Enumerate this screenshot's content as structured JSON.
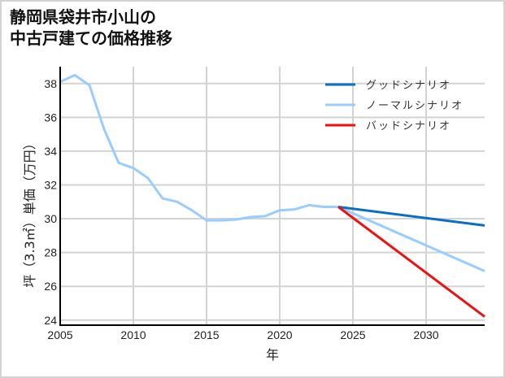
{
  "title": "静岡県袋井市小山の\n中古戸建ての価格推移",
  "chart_data": {
    "type": "line",
    "title": "静岡県袋井市小山の中古戸建ての価格推移",
    "xlabel": "年",
    "ylabel": "坪（3.3㎡）単価（万円）",
    "xlim": [
      2005,
      2034
    ],
    "ylim": [
      23.7,
      39.0
    ],
    "xticks": [
      2005,
      2010,
      2015,
      2020,
      2025,
      2030
    ],
    "yticks": [
      24,
      26,
      28,
      30,
      32,
      34,
      36,
      38
    ],
    "grid": true,
    "legend_position": "upper right",
    "series": [
      {
        "name": "グッドシナリオ",
        "color": "#0a6fc2",
        "x": [
          2024,
          2034
        ],
        "values": [
          30.7,
          29.6
        ]
      },
      {
        "name": "ノーマルシナリオ",
        "color": "#99ccff",
        "x": [
          2005,
          2006,
          2007,
          2008,
          2009,
          2010,
          2011,
          2012,
          2013,
          2014,
          2015,
          2016,
          2017,
          2018,
          2019,
          2020,
          2021,
          2022,
          2023,
          2024,
          2034
        ],
        "values": [
          38.1,
          38.5,
          37.9,
          35.3,
          33.3,
          33.0,
          32.4,
          31.2,
          31.0,
          30.5,
          29.9,
          29.9,
          29.95,
          30.1,
          30.15,
          30.5,
          30.55,
          30.8,
          30.7,
          30.7,
          26.9
        ]
      },
      {
        "name": "バッドシナリオ",
        "color": "#ee1111",
        "x": [
          2024,
          2034
        ],
        "values": [
          30.7,
          24.2
        ]
      }
    ]
  }
}
